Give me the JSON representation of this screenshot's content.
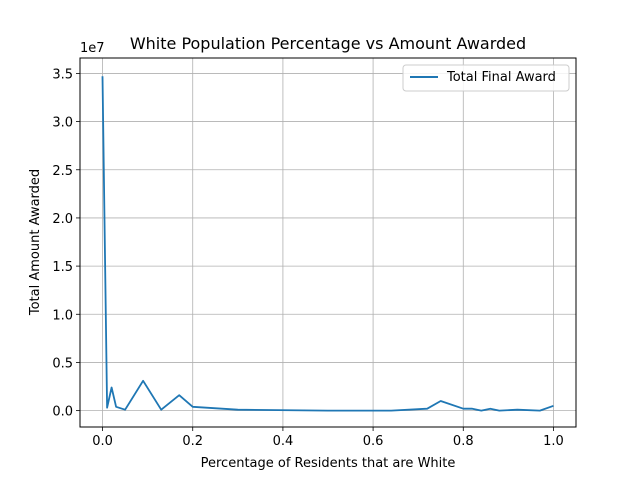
{
  "chart_data": {
    "type": "line",
    "title": "White Population Percentage vs Amount Awarded",
    "xlabel": "Percentage of Residents that are White",
    "ylabel": "Total Amount Awarded",
    "y_offset_label": "1e7",
    "xlim": [
      -0.05,
      1.05
    ],
    "ylim": [
      -0.17,
      3.66
    ],
    "x_ticks": [
      0.0,
      0.2,
      0.4,
      0.6,
      0.8,
      1.0
    ],
    "x_tick_labels": [
      "0.0",
      "0.2",
      "0.4",
      "0.6",
      "0.8",
      "1.0"
    ],
    "y_ticks": [
      0.0,
      0.5,
      1.0,
      1.5,
      2.0,
      2.5,
      3.0,
      3.5
    ],
    "y_tick_labels": [
      "0.0",
      "0.5",
      "1.0",
      "1.5",
      "2.0",
      "2.5",
      "3.0",
      "3.5"
    ],
    "grid": true,
    "legend_position": "top-right",
    "series": [
      {
        "name": "Total Final Award",
        "color": "#1f77b4",
        "x": [
          0.0,
          0.01,
          0.02,
          0.03,
          0.05,
          0.09,
          0.13,
          0.17,
          0.2,
          0.3,
          0.5,
          0.64,
          0.72,
          0.75,
          0.8,
          0.82,
          0.84,
          0.86,
          0.88,
          0.92,
          0.97,
          1.0
        ],
        "y": [
          3.47,
          0.03,
          0.24,
          0.04,
          0.01,
          0.31,
          0.01,
          0.16,
          0.04,
          0.01,
          0.0,
          0.0,
          0.02,
          0.1,
          0.02,
          0.02,
          0.0,
          0.02,
          0.0,
          0.01,
          0.0,
          0.05
        ]
      }
    ]
  }
}
